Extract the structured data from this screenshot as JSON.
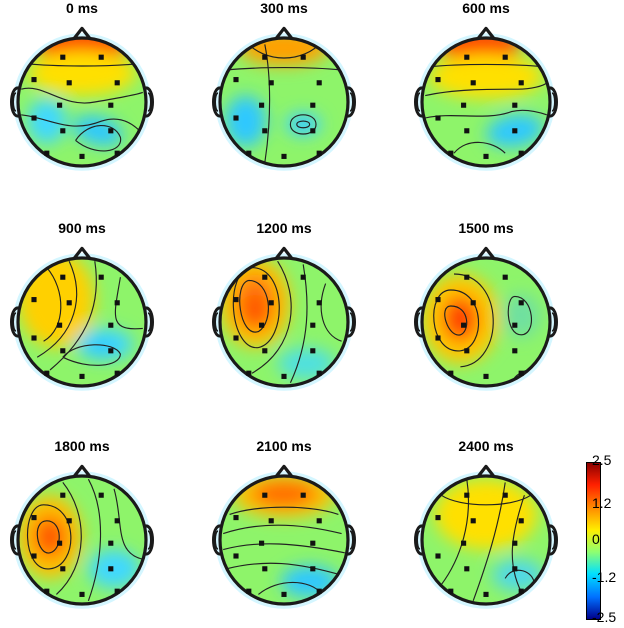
{
  "maps": [
    {
      "title": "0 ms",
      "blobs": [
        [
          "#ff4400",
          0.0,
          -0.9,
          0.72,
          0.3,
          0
        ],
        [
          "#ffe000",
          0.0,
          -0.45,
          0.85,
          0.35,
          0
        ],
        [
          "#2ec8ff",
          0.25,
          0.45,
          0.4,
          0.22,
          15
        ],
        [
          "#40d8ff",
          -0.55,
          0.3,
          0.3,
          0.35,
          0
        ]
      ]
    },
    {
      "title": "300 ms",
      "blobs": [
        [
          "#ffa000",
          0.0,
          -0.85,
          0.7,
          0.28,
          0
        ],
        [
          "#2ec8ff",
          -0.6,
          0.3,
          0.32,
          0.4,
          0
        ],
        [
          "#40d8ff",
          0.3,
          0.35,
          0.28,
          0.18,
          0
        ],
        [
          "#2fb8ff",
          0.3,
          0.35,
          0.12,
          0.09,
          0
        ]
      ]
    },
    {
      "title": "600 ms",
      "blobs": [
        [
          "#ff4400",
          -0.1,
          -0.9,
          0.65,
          0.28,
          0
        ],
        [
          "#ffe000",
          0.0,
          -0.4,
          0.9,
          0.35,
          0
        ],
        [
          "#2ec8ff",
          0.45,
          0.45,
          0.45,
          0.25,
          -10
        ]
      ]
    },
    {
      "title": "900 ms",
      "blobs": [
        [
          "#ff9a20",
          -0.4,
          -0.35,
          0.4,
          0.55,
          0
        ],
        [
          "#ffd000",
          -0.4,
          -0.35,
          0.6,
          0.75,
          0
        ],
        [
          "#40d8ff",
          0.35,
          0.35,
          0.45,
          0.25,
          0
        ],
        [
          "#2ec8ff",
          0.3,
          0.4,
          0.25,
          0.12,
          0
        ]
      ]
    },
    {
      "title": "1200 ms",
      "blobs": [
        [
          "#ffc000",
          -0.45,
          -0.3,
          0.55,
          0.7,
          0
        ],
        [
          "#ff7a10",
          -0.45,
          -0.3,
          0.32,
          0.45,
          0
        ],
        [
          "#ff5500",
          -0.45,
          -0.2,
          0.18,
          0.25,
          0
        ],
        [
          "#50e0e0",
          0.35,
          0.65,
          0.45,
          0.25,
          0
        ]
      ]
    },
    {
      "title": "1500 ms",
      "blobs": [
        [
          "#ffc800",
          -0.4,
          -0.05,
          0.6,
          0.7,
          0
        ],
        [
          "#ff6a00",
          -0.4,
          -0.05,
          0.3,
          0.38,
          0
        ],
        [
          "#ff2a00",
          -0.4,
          -0.05,
          0.15,
          0.2,
          0
        ],
        [
          "#70e0a0",
          0.55,
          -0.1,
          0.3,
          0.35,
          0
        ]
      ]
    },
    {
      "title": "1800 ms",
      "blobs": [
        [
          "#ffc000",
          -0.5,
          -0.05,
          0.5,
          0.65,
          0
        ],
        [
          "#ff7a00",
          -0.5,
          -0.05,
          0.28,
          0.35,
          0
        ],
        [
          "#ff4a00",
          -0.5,
          -0.05,
          0.15,
          0.2,
          0
        ],
        [
          "#40d8ff",
          0.5,
          0.45,
          0.4,
          0.3,
          0
        ]
      ]
    },
    {
      "title": "2100 ms",
      "blobs": [
        [
          "#ffc000",
          0.0,
          -0.7,
          0.8,
          0.35,
          0
        ],
        [
          "#ff6a00",
          0.0,
          -0.72,
          0.5,
          0.2,
          0
        ],
        [
          "#2ec8ff",
          0.4,
          0.65,
          0.45,
          0.25,
          0
        ]
      ]
    },
    {
      "title": "2400 ms",
      "blobs": [
        [
          "#ffe000",
          0.0,
          -0.4,
          0.8,
          0.55,
          0
        ],
        [
          "#50d8e8",
          0.5,
          0.55,
          0.4,
          0.25,
          0
        ]
      ]
    }
  ],
  "colorbar": {
    "ticks": [
      "2.5",
      "1.2",
      "0",
      "-1.2",
      "-2.5"
    ],
    "colors": [
      "#8b0000",
      "#ff2000",
      "#ff8c00",
      "#ffee00",
      "#8fff70",
      "#00e0ff",
      "#0070ff",
      "#00008b"
    ]
  },
  "colors": {
    "baseline": "#8ef46a",
    "outline": "#1a1a1a",
    "electrode": "#111111"
  }
}
